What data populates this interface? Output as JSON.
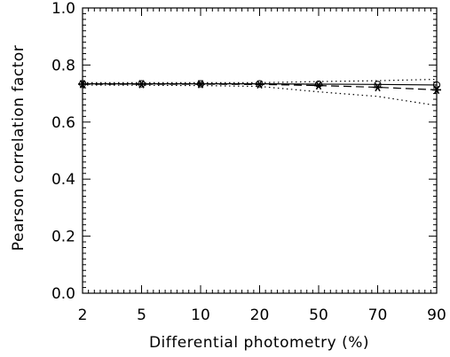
{
  "chart_data": {
    "type": "line",
    "xlabel": "Differential photometry (%)",
    "ylabel": "Pearson correlation factor",
    "categories": [
      "2",
      "5",
      "10",
      "20",
      "50",
      "70",
      "90"
    ],
    "ylim": [
      0.0,
      1.0
    ],
    "yticks": [
      "0.0",
      "0.2",
      "0.4",
      "0.6",
      "0.8",
      "1.0"
    ],
    "grid": false,
    "legend": "none",
    "series": [
      {
        "style": "solid-circle",
        "values": [
          0.734,
          0.734,
          0.734,
          0.734,
          0.733,
          0.732,
          0.73
        ]
      },
      {
        "style": "dashed-asterisk",
        "values": [
          0.733,
          0.733,
          0.733,
          0.732,
          0.728,
          0.722,
          0.713
        ]
      },
      {
        "style": "dotted-upper",
        "values": [
          0.738,
          0.738,
          0.738,
          0.738,
          0.742,
          0.745,
          0.75
        ]
      },
      {
        "style": "dotted-lower",
        "values": [
          0.73,
          0.729,
          0.728,
          0.725,
          0.706,
          0.69,
          0.658
        ]
      }
    ]
  }
}
